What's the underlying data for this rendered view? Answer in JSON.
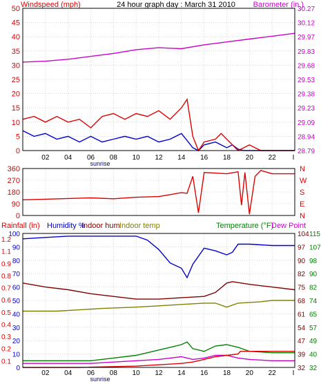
{
  "colors": {
    "windspeed": "#dd0000",
    "windgust": "#0000cc",
    "barometer": "#cc00cc",
    "direction": "#dd0000",
    "humidity": "#0000cc",
    "indoor_hum": "#800000",
    "indoor_temp": "#808000",
    "temperature": "#008000",
    "dewpoint": "#cc00cc",
    "rainfall": "#dd0000",
    "grid": "#c0c0c0",
    "frame": "#000000"
  },
  "chart_data": [
    {
      "id": "wind-baro",
      "type": "line",
      "title": "24 hour graph day : March 31 2010",
      "left_label": "Windspeed (mph)",
      "right_label": "Barometer (in.)",
      "x_ticks": [
        "02",
        "04",
        "06",
        "08",
        "10",
        "12",
        "14",
        "16",
        "18",
        "20",
        "22"
      ],
      "x_end_tick": "I",
      "sunrise_label": "sunrise",
      "sunrise_hour": 6.3,
      "xlim": [
        0,
        24
      ],
      "ylim_left": [
        0,
        50
      ],
      "ylim_right": [
        28.79,
        30.27
      ],
      "left_ticks": [
        "0",
        "5",
        "10",
        "15",
        "20",
        "25",
        "30",
        "35",
        "40",
        "45",
        "50"
      ],
      "right_ticks": [
        "28.79",
        "28.94",
        "29.09",
        "29.23",
        "29.38",
        "29.53",
        "29.68",
        "29.83",
        "29.97",
        "30.12",
        "30.27"
      ],
      "series": [
        {
          "key": "wind_avg",
          "axis": "left",
          "color_key": "windgust",
          "points": [
            [
              0,
              7
            ],
            [
              1,
              5
            ],
            [
              2,
              6
            ],
            [
              3,
              4
            ],
            [
              4,
              5
            ],
            [
              5,
              3
            ],
            [
              6,
              5
            ],
            [
              7,
              3
            ],
            [
              8,
              4
            ],
            [
              9,
              5
            ],
            [
              10,
              4
            ],
            [
              11,
              5
            ],
            [
              12,
              3
            ],
            [
              13,
              4
            ],
            [
              14,
              6
            ],
            [
              14.6,
              3
            ],
            [
              15,
              1
            ],
            [
              15.5,
              0
            ],
            [
              16,
              2
            ],
            [
              17,
              3
            ],
            [
              17.5,
              2
            ],
            [
              18,
              1
            ],
            [
              18.5,
              2
            ],
            [
              19,
              0.5
            ],
            [
              19.5,
              0
            ],
            [
              20,
              0
            ],
            [
              21,
              0
            ],
            [
              22,
              0
            ],
            [
              24,
              0
            ]
          ]
        },
        {
          "key": "wind_gust",
          "axis": "left",
          "color_key": "windspeed",
          "points": [
            [
              0,
              11
            ],
            [
              1,
              12
            ],
            [
              2,
              10
            ],
            [
              3,
              12
            ],
            [
              4,
              10
            ],
            [
              5,
              11
            ],
            [
              6,
              8
            ],
            [
              7,
              12
            ],
            [
              8,
              13
            ],
            [
              9,
              11
            ],
            [
              10,
              13
            ],
            [
              11,
              12
            ],
            [
              12,
              14
            ],
            [
              13,
              11
            ],
            [
              14,
              15
            ],
            [
              14.5,
              18
            ],
            [
              15,
              5
            ],
            [
              15.5,
              0
            ],
            [
              16,
              3
            ],
            [
              17,
              4
            ],
            [
              17.5,
              6
            ],
            [
              18,
              4
            ],
            [
              18.5,
              2
            ],
            [
              19,
              0
            ],
            [
              20,
              2
            ],
            [
              21,
              0
            ],
            [
              22,
              0
            ],
            [
              24,
              0
            ]
          ]
        },
        {
          "key": "barometer",
          "axis": "right",
          "color_key": "barometer",
          "points": [
            [
              0,
              29.71
            ],
            [
              2,
              29.72
            ],
            [
              4,
              29.74
            ],
            [
              6,
              29.77
            ],
            [
              8,
              29.8
            ],
            [
              10,
              29.84
            ],
            [
              12,
              29.86
            ],
            [
              14,
              29.85
            ],
            [
              16,
              29.89
            ],
            [
              18,
              29.92
            ],
            [
              20,
              29.95
            ],
            [
              22,
              29.98
            ],
            [
              24,
              30.01
            ]
          ]
        }
      ]
    },
    {
      "id": "direction",
      "type": "line",
      "xlim": [
        0,
        24
      ],
      "ylim": [
        0,
        360
      ],
      "left_ticks": [
        "0",
        "90",
        "180",
        "270",
        "360"
      ],
      "right_ticks": [
        "N",
        "E",
        "S",
        "W",
        "N"
      ],
      "series": [
        {
          "key": "wind_dir",
          "color_key": "direction",
          "points": [
            [
              0,
              120
            ],
            [
              2,
              125
            ],
            [
              4,
              130
            ],
            [
              6,
              135
            ],
            [
              8,
              128
            ],
            [
              10,
              140
            ],
            [
              12,
              145
            ],
            [
              13,
              160
            ],
            [
              14,
              175
            ],
            [
              14.5,
              170
            ],
            [
              15,
              300
            ],
            [
              15.5,
              20
            ],
            [
              16,
              330
            ],
            [
              17,
              325
            ],
            [
              18,
              320
            ],
            [
              19,
              335
            ],
            [
              19.3,
              80
            ],
            [
              19.6,
              330
            ],
            [
              20,
              10
            ],
            [
              20.5,
              300
            ],
            [
              21,
              345
            ],
            [
              22,
              320
            ],
            [
              24,
              320
            ]
          ]
        }
      ]
    },
    {
      "id": "rain-hum-temp",
      "type": "line",
      "labels": {
        "rainfall": "Rainfall (in)",
        "humidity": "Humidity %",
        "indoor_hum": "Indoor hum",
        "indoor_temp": "Indoor temp",
        "temperature": "Temperature (°F)",
        "dewpoint": "Dew Point"
      },
      "x_ticks": [
        "02",
        "04",
        "06",
        "08",
        "10",
        "12",
        "14",
        "16",
        "18",
        "20",
        "22"
      ],
      "x_end_tick": "I",
      "sunrise_label": "sunrise",
      "xlim": [
        0,
        24
      ],
      "ylim_humidity": [
        0,
        100
      ],
      "ylim_temp": [
        32,
        115
      ],
      "humidity_ticks": [
        "0",
        "10",
        "20",
        "30",
        "40",
        "50",
        "60",
        "70",
        "80",
        "90",
        "100"
      ],
      "rain_ticks": [
        "0.0",
        "0.1",
        "0.2",
        "0.3",
        "0.4",
        "0.5",
        "0.6",
        "0.7",
        "0.8",
        "0.9",
        "1.1",
        "1.2"
      ],
      "temp_ticks_outer": [
        "32",
        "40",
        "49",
        "57",
        "65",
        "74",
        "82",
        "90",
        "98",
        "107",
        "115"
      ],
      "temp_ticks_inner": [
        "32",
        "39",
        "47",
        "54",
        "61",
        "68",
        "75",
        "82",
        "90",
        "97",
        "104"
      ],
      "series": [
        {
          "key": "humidity",
          "axis": "humidity",
          "color_key": "humidity",
          "points": [
            [
              0,
              96
            ],
            [
              2,
              97
            ],
            [
              4,
              98
            ],
            [
              6,
              98
            ],
            [
              8,
              98
            ],
            [
              10,
              98
            ],
            [
              11,
              95
            ],
            [
              12,
              88
            ],
            [
              13,
              78
            ],
            [
              14,
              74
            ],
            [
              14.5,
              67
            ],
            [
              15,
              77
            ],
            [
              16,
              89
            ],
            [
              17,
              87
            ],
            [
              18,
              84
            ],
            [
              18.5,
              86
            ],
            [
              19,
              92
            ],
            [
              20,
              92
            ],
            [
              22,
              91
            ],
            [
              24,
              91
            ]
          ]
        },
        {
          "key": "indoor_hum",
          "axis": "humidity",
          "color_key": "indoor_hum",
          "points": [
            [
              0,
              63
            ],
            [
              2,
              60
            ],
            [
              4,
              58
            ],
            [
              6,
              55
            ],
            [
              8,
              53
            ],
            [
              10,
              51
            ],
            [
              12,
              51
            ],
            [
              14,
              52
            ],
            [
              16,
              53
            ],
            [
              17,
              56
            ],
            [
              18,
              63
            ],
            [
              18.5,
              64
            ],
            [
              20,
              62
            ],
            [
              22,
              60
            ],
            [
              24,
              58
            ]
          ]
        },
        {
          "key": "indoor_temp",
          "axis": "humidity",
          "color_key": "indoor_temp",
          "points": [
            [
              0,
              42
            ],
            [
              3,
              42
            ],
            [
              5,
              43
            ],
            [
              7,
              44
            ],
            [
              10,
              45
            ],
            [
              12,
              46
            ],
            [
              14,
              47
            ],
            [
              16,
              48
            ],
            [
              17,
              48
            ],
            [
              18,
              45
            ],
            [
              19,
              48
            ],
            [
              21,
              49
            ],
            [
              22,
              50
            ],
            [
              24,
              50
            ]
          ]
        },
        {
          "key": "temperature",
          "axis": "humidity",
          "color_key": "temperature",
          "points": [
            [
              0,
              5
            ],
            [
              2,
              5
            ],
            [
              4,
              5
            ],
            [
              6,
              5
            ],
            [
              8,
              7
            ],
            [
              10,
              9
            ],
            [
              12,
              13
            ],
            [
              13,
              15
            ],
            [
              14,
              17
            ],
            [
              14.5,
              19
            ],
            [
              15,
              14
            ],
            [
              16,
              12
            ],
            [
              17,
              16
            ],
            [
              18,
              17
            ],
            [
              19,
              15
            ],
            [
              20,
              12
            ],
            [
              22,
              11
            ],
            [
              24,
              11
            ]
          ]
        },
        {
          "key": "dewpoint",
          "axis": "humidity",
          "color_key": "dewpoint",
          "points": [
            [
              0,
              3
            ],
            [
              2,
              3
            ],
            [
              4,
              3
            ],
            [
              6,
              3
            ],
            [
              8,
              4
            ],
            [
              10,
              5
            ],
            [
              12,
              6
            ],
            [
              14,
              8
            ],
            [
              15,
              6
            ],
            [
              16,
              7
            ],
            [
              17,
              9
            ],
            [
              18,
              9
            ],
            [
              19,
              7
            ],
            [
              20,
              6
            ],
            [
              22,
              5
            ],
            [
              24,
              5
            ]
          ]
        },
        {
          "key": "rainfall",
          "axis": "humidity",
          "color_key": "rainfall",
          "points": [
            [
              0,
              0
            ],
            [
              5,
              0
            ],
            [
              10,
              1
            ],
            [
              14,
              3
            ],
            [
              15,
              4
            ],
            [
              16,
              6
            ],
            [
              17,
              8
            ],
            [
              18,
              9
            ],
            [
              19,
              10
            ],
            [
              19.2,
              12
            ],
            [
              24,
              12
            ]
          ]
        }
      ]
    }
  ]
}
